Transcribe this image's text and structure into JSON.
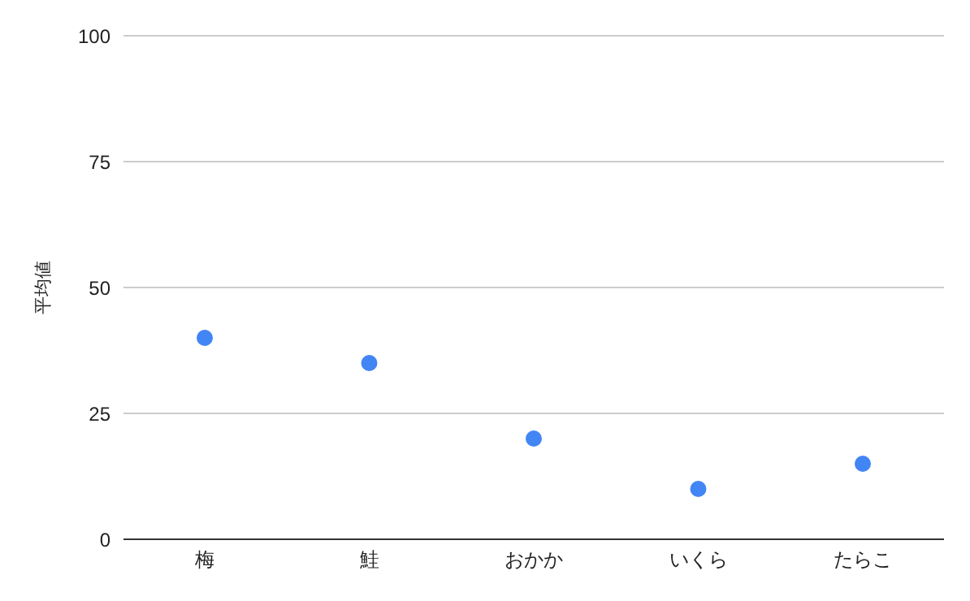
{
  "chart_data": {
    "type": "scatter",
    "ylabel": "平均値",
    "categories": [
      "梅",
      "鮭",
      "おかか",
      "いくら",
      "たらこ"
    ],
    "series": [
      {
        "color": "#4285f4",
        "values": [
          40,
          35,
          20,
          10,
          15
        ]
      }
    ],
    "ylim": [
      0,
      100
    ],
    "yticks": [
      0,
      25,
      50,
      75,
      100
    ],
    "grid": "y",
    "marker": "circle",
    "legend": false
  }
}
